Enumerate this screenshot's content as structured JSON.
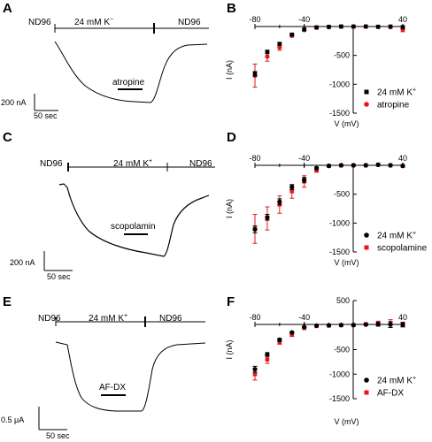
{
  "colors": {
    "black": "#000000",
    "red": "#e8161b",
    "grid": "#000000"
  },
  "panels": {
    "A": {
      "label": "A",
      "left_bath": "ND96",
      "k_label": "24 mM K",
      "k_sup": "−",
      "right_bath": "ND96",
      "drug": "atropine",
      "scale_y": "200 nA",
      "scale_x": "50 sec"
    },
    "C": {
      "label": "C",
      "left_bath": "ND96",
      "k_label": "24 mM K",
      "k_sup": "+",
      "right_bath": "ND96",
      "drug": "scopolamin",
      "scale_y": "200 nA",
      "scale_x": "50 sec"
    },
    "E": {
      "label": "E",
      "left_bath": "ND96",
      "k_label": "24 mM K",
      "k_sup": "+",
      "right_bath": "ND96",
      "drug": "AF-DX",
      "scale_y": "0.5 μA",
      "scale_x": "50 sec"
    }
  },
  "chart_data": [
    {
      "panel": "B",
      "type": "scatter",
      "xlabel": "V (mV)",
      "ylabel": "I (nA)",
      "xlim": [
        -80,
        40
      ],
      "ylim": [
        -1500,
        0
      ],
      "x_ticks": [
        -80,
        -40,
        40
      ],
      "y_ticks": [
        -500,
        -1000,
        -1500
      ],
      "legend_position": "bottom-right",
      "series": [
        {
          "name": "24 mM K",
          "name_sup": "+",
          "marker": "square",
          "color": "#000000",
          "x": [
            -80,
            -70,
            -60,
            -50,
            -40,
            -30,
            -20,
            -10,
            0,
            10,
            20,
            30,
            40
          ],
          "y": [
            -820,
            -440,
            -300,
            -140,
            -50,
            -15,
            -5,
            0,
            0,
            0,
            -5,
            0,
            -10
          ],
          "err": [
            40,
            30,
            20,
            10,
            5,
            3,
            2,
            2,
            2,
            2,
            2,
            2,
            3
          ]
        },
        {
          "name": "atropine",
          "marker": "circle",
          "color": "#e8161b",
          "x": [
            -80,
            -70,
            -60,
            -50,
            -40,
            -30,
            -20,
            -10,
            0,
            10,
            20,
            30,
            40
          ],
          "y": [
            -850,
            -520,
            -360,
            -160,
            -60,
            -20,
            -10,
            0,
            0,
            0,
            -5,
            -10,
            -50
          ],
          "err": [
            200,
            80,
            50,
            20,
            10,
            5,
            3,
            2,
            2,
            2,
            2,
            5,
            40
          ]
        }
      ]
    },
    {
      "panel": "D",
      "type": "scatter",
      "xlabel": "V (mV)",
      "ylabel": "I (nA)",
      "xlim": [
        -80,
        40
      ],
      "ylim": [
        -1500,
        0
      ],
      "x_ticks": [
        -80,
        -40,
        40
      ],
      "y_ticks": [
        -500,
        -1000,
        -1500
      ],
      "legend_position": "bottom-right",
      "series": [
        {
          "name": "24 mM K",
          "name_sup": "+",
          "marker": "circle",
          "color": "#000000",
          "x": [
            -80,
            -70,
            -60,
            -50,
            -40,
            -30,
            -20,
            -10,
            0,
            10,
            20,
            30,
            40
          ],
          "y": [
            -1110,
            -900,
            -630,
            -380,
            -250,
            -50,
            -10,
            0,
            0,
            0,
            10,
            0,
            -10
          ],
          "err": [
            60,
            50,
            50,
            40,
            40,
            20,
            10,
            3,
            2,
            3,
            3,
            3,
            5
          ]
        },
        {
          "name": "scopolamine",
          "marker": "square",
          "color": "#e8161b",
          "x": [
            -80,
            -70,
            -60,
            -50,
            -40,
            -30,
            -20,
            -10,
            0,
            10,
            20,
            30,
            40
          ],
          "y": [
            -1100,
            -920,
            -680,
            -450,
            -280,
            -80,
            -10,
            0,
            0,
            0,
            10,
            0,
            -10
          ],
          "err": [
            250,
            200,
            150,
            120,
            100,
            40,
            10,
            3,
            2,
            3,
            3,
            3,
            5
          ]
        }
      ]
    },
    {
      "panel": "F",
      "type": "scatter",
      "xlabel": "V (mV)",
      "ylabel": "I (nA)",
      "xlim": [
        -80,
        40
      ],
      "ylim": [
        -1500,
        500
      ],
      "x_ticks": [
        -80,
        -40,
        40
      ],
      "y_ticks": [
        500,
        -500,
        -1000,
        -1500
      ],
      "legend_position": "bottom-right",
      "series": [
        {
          "name": "24 mM K",
          "name_sup": "+",
          "marker": "circle",
          "color": "#000000",
          "x": [
            -80,
            -70,
            -60,
            -50,
            -40,
            -30,
            -20,
            -10,
            0,
            10,
            20,
            30,
            40
          ],
          "y": [
            -900,
            -600,
            -300,
            -150,
            -40,
            -10,
            -5,
            0,
            0,
            10,
            20,
            10,
            10
          ],
          "err": [
            60,
            40,
            30,
            20,
            10,
            5,
            3,
            2,
            2,
            10,
            40,
            60,
            40
          ]
        },
        {
          "name": "AF-DX",
          "marker": "square",
          "color": "#e8161b",
          "x": [
            -80,
            -70,
            -60,
            -50,
            -40,
            -30,
            -20,
            -10,
            0,
            10,
            20,
            30,
            40
          ],
          "y": [
            -1000,
            -700,
            -350,
            -200,
            -60,
            -20,
            -10,
            0,
            0,
            20,
            30,
            30,
            10
          ],
          "err": [
            120,
            80,
            40,
            30,
            15,
            5,
            3,
            2,
            2,
            20,
            50,
            80,
            50
          ]
        }
      ]
    }
  ]
}
